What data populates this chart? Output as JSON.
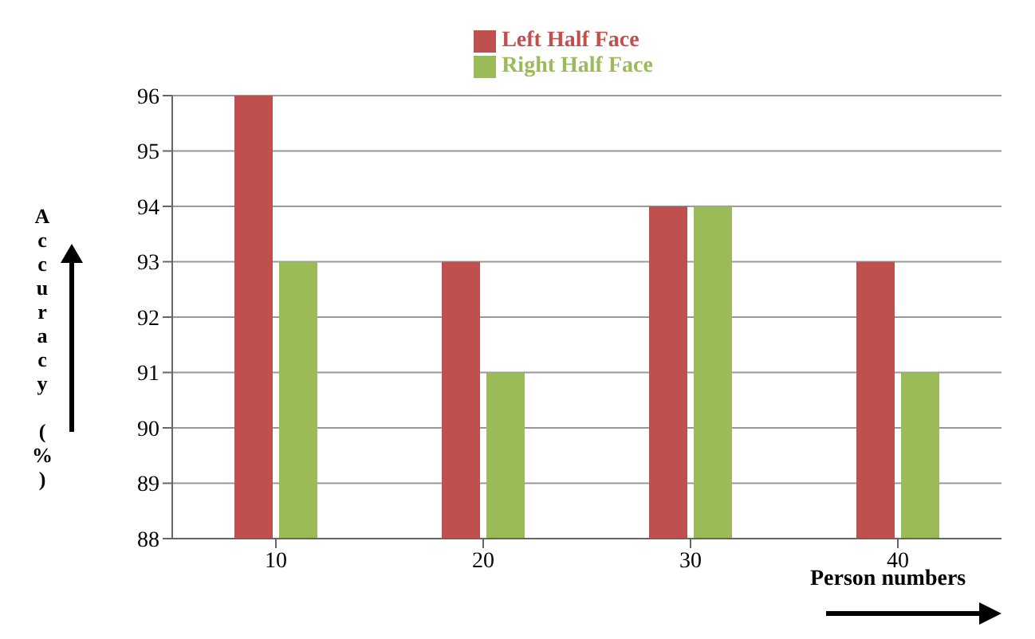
{
  "chart_data": {
    "type": "bar",
    "categories": [
      "10",
      "20",
      "30",
      "40"
    ],
    "series": [
      {
        "name": "Left Half Face",
        "color": "#c0504d",
        "values": [
          96,
          93,
          94,
          93
        ]
      },
      {
        "name": "Right Half Face",
        "color": "#9bbb59",
        "values": [
          93,
          91,
          94,
          91
        ]
      }
    ],
    "ylim": [
      88,
      96
    ],
    "yticks": [
      88,
      89,
      90,
      91,
      92,
      93,
      94,
      95,
      96
    ],
    "grid": "y",
    "legend": "top",
    "xlabel": "Person numbers",
    "ylabel": "Accuracy (%)"
  }
}
